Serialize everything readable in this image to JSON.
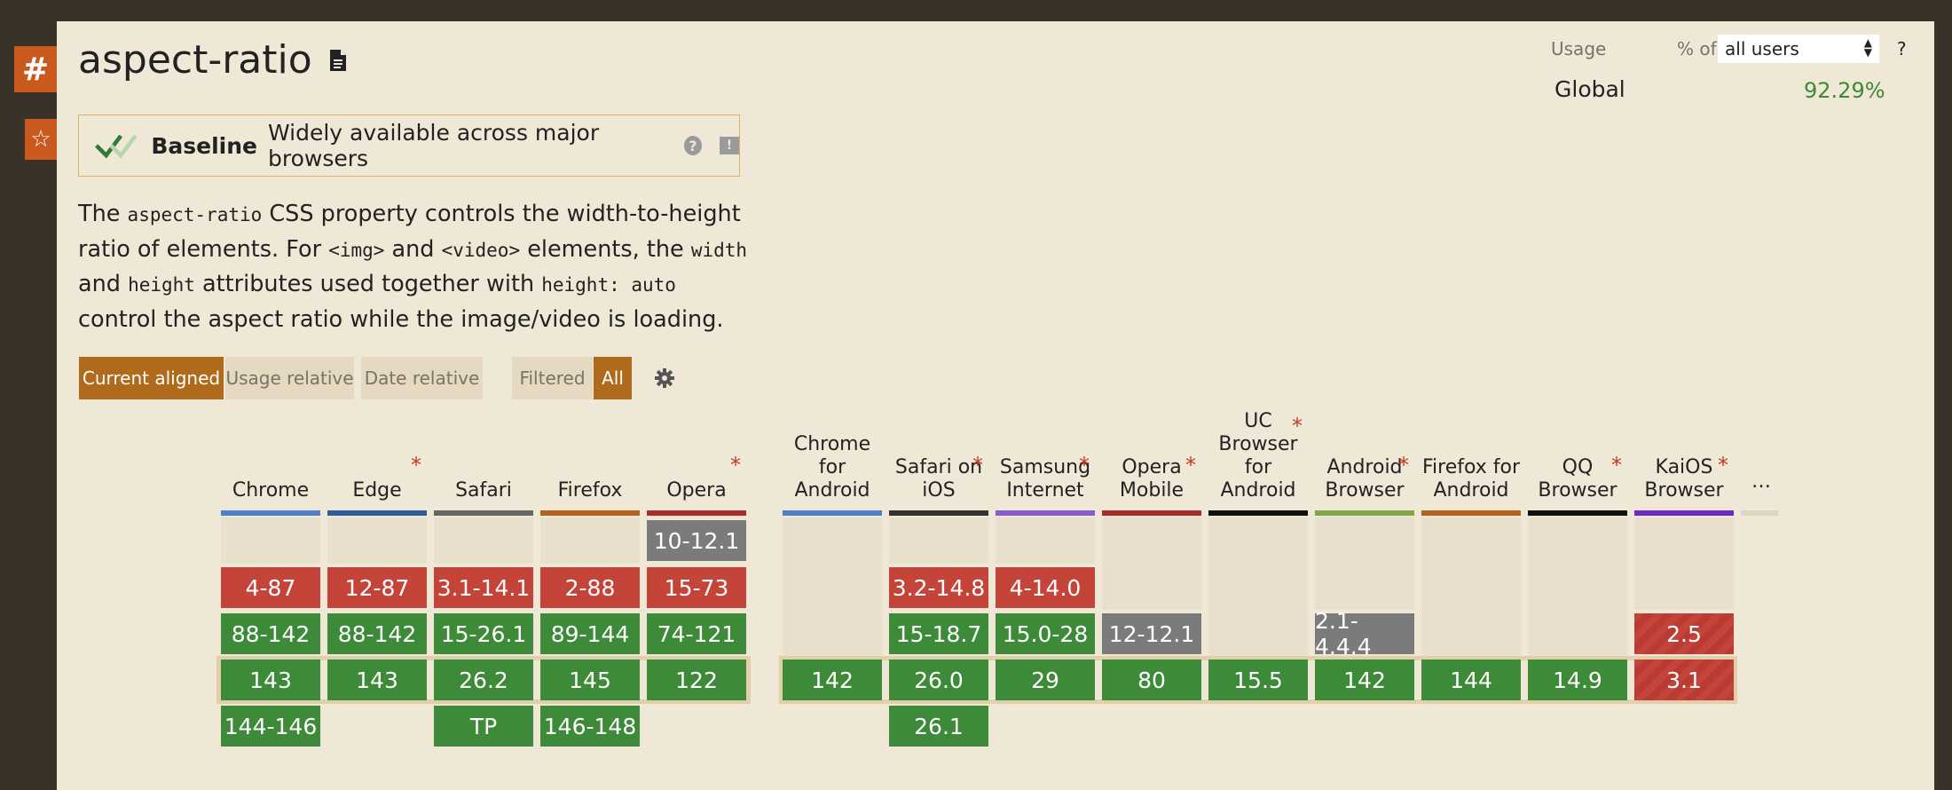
{
  "side": {
    "hash": "#",
    "star": "☆"
  },
  "title": "aspect-ratio",
  "baseline": {
    "label": "Baseline",
    "text": "Widely available across major browsers",
    "help": "?",
    "feedback": "!"
  },
  "description": {
    "p1": "The ",
    "c1": "aspect-ratio",
    "p2": " CSS property controls the width-to-height ratio of elements. For ",
    "c2": "<img>",
    "p3": " and ",
    "c3": "<video>",
    "p4": " elements, the ",
    "c4": "width",
    "p5": " and ",
    "c5": "height",
    "p6": " attributes used together with ",
    "c6": "height: auto",
    "p7": " control the aspect ratio while the image/video is loading."
  },
  "view_tabs": [
    "Current aligned",
    "Usage relative",
    "Date relative"
  ],
  "filter_tabs": [
    "Filtered",
    "All"
  ],
  "usage": {
    "label": "Usage",
    "pct_of": "% of",
    "select_value": "all users",
    "help": "?",
    "region": "Global",
    "value": "92.29%"
  },
  "more": "…",
  "browsers": [
    {
      "name": "Chrome",
      "star": false,
      "color": "#4d7fcb",
      "cells": [
        null,
        "4-87",
        "88-142",
        "143",
        "144-146"
      ],
      "types": [
        null,
        "n",
        "y",
        "y",
        "y"
      ]
    },
    {
      "name": "Edge",
      "star": true,
      "color": "#2e5f9a",
      "cells": [
        null,
        "12-87",
        "88-142",
        "143",
        null
      ],
      "types": [
        null,
        "n",
        "y",
        "y",
        null
      ]
    },
    {
      "name": "Safari",
      "star": false,
      "color": "#666666",
      "cells": [
        null,
        "3.1-14.1",
        "15-26.1",
        "26.2",
        "TP"
      ],
      "types": [
        null,
        "n",
        "y",
        "y",
        "y"
      ]
    },
    {
      "name": "Firefox",
      "star": false,
      "color": "#b5621d",
      "cells": [
        null,
        "2-88",
        "89-144",
        "145",
        "146-148"
      ],
      "types": [
        null,
        "n",
        "y",
        "y",
        "y"
      ]
    },
    {
      "name": "Opera",
      "star": true,
      "color": "#a82c2c",
      "cells": [
        "10-12.1",
        "15-73",
        "74-121",
        "122",
        null
      ],
      "types": [
        "u",
        "n",
        "y",
        "y",
        null
      ]
    },
    {
      "name": "Chrome for Android",
      "star": false,
      "color": "#4d7fcb",
      "cells": [
        null,
        null,
        null,
        "142",
        null
      ],
      "types": [
        null,
        null,
        null,
        "y",
        null
      ]
    },
    {
      "name": "Safari on iOS",
      "star": true,
      "color": "#333333",
      "cells": [
        null,
        "3.2-14.8",
        "15-18.7",
        "26.0",
        "26.1"
      ],
      "types": [
        null,
        "n",
        "y",
        "y",
        "y"
      ]
    },
    {
      "name": "Samsung Internet",
      "star": true,
      "color": "#8a5cd4",
      "cells": [
        null,
        "4-14.0",
        "15.0-28",
        "29",
        null
      ],
      "types": [
        null,
        "n",
        "y",
        "y",
        null
      ]
    },
    {
      "name": "Opera Mobile",
      "star": true,
      "color": "#a82c2c",
      "cells": [
        null,
        null,
        "12-12.1",
        "80",
        null
      ],
      "types": [
        null,
        null,
        "u",
        "y",
        null
      ]
    },
    {
      "name": "UC Browser for Android",
      "star": true,
      "color": "#111111",
      "cells": [
        null,
        null,
        null,
        "15.5",
        null
      ],
      "types": [
        null,
        null,
        null,
        "y",
        null
      ]
    },
    {
      "name": "Android Browser",
      "star": true,
      "color": "#7ea84a",
      "cells": [
        null,
        null,
        "2.1-4.4.4",
        "142",
        null
      ],
      "types": [
        null,
        null,
        "u",
        "y",
        null
      ]
    },
    {
      "name": "Firefox for Android",
      "star": false,
      "color": "#b5621d",
      "cells": [
        null,
        null,
        null,
        "144",
        null
      ],
      "types": [
        null,
        null,
        null,
        "y",
        null
      ]
    },
    {
      "name": "QQ Browser",
      "star": true,
      "color": "#111111",
      "cells": [
        null,
        null,
        null,
        "14.9",
        null
      ],
      "types": [
        null,
        null,
        null,
        "y",
        null
      ]
    },
    {
      "name": "KaiOS Browser",
      "star": true,
      "color": "#6c2ac2",
      "cells": [
        null,
        null,
        "2.5",
        "3.1",
        null
      ],
      "types": [
        null,
        null,
        "p",
        "p",
        null
      ]
    }
  ]
}
